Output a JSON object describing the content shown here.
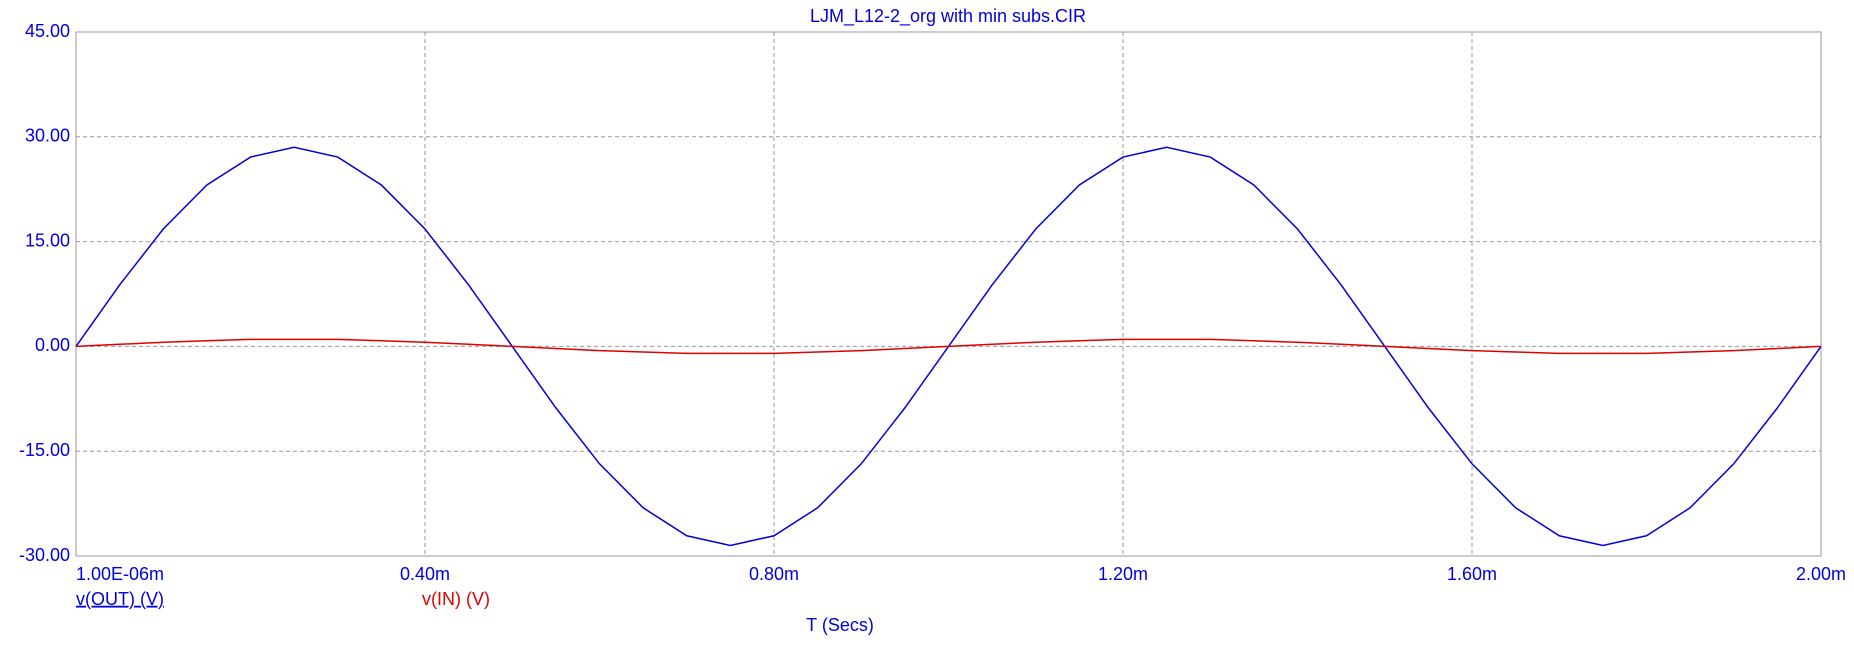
{
  "chart_data": {
    "type": "line",
    "title": "LJM_L12-2_org with min subs.CIR",
    "x_label": "T (Secs)",
    "x": [
      1e-06,
      0.05,
      0.1,
      0.15,
      0.2,
      0.25,
      0.3,
      0.35,
      0.4,
      0.45,
      0.5,
      0.55,
      0.6,
      0.65,
      0.7,
      0.75,
      0.8,
      0.85,
      0.9,
      0.95,
      1.0,
      1.05,
      1.1,
      1.15,
      1.2,
      1.25,
      1.3,
      1.35,
      1.4,
      1.45,
      1.5,
      1.55,
      1.6,
      1.65,
      1.7,
      1.75,
      1.8,
      1.85,
      1.9,
      1.95,
      2.0
    ],
    "series": [
      {
        "name": "v(OUT) (V)",
        "color": "#0000e0",
        "values": [
          0,
          8.8,
          16.8,
          23.1,
          27.1,
          28.5,
          27.1,
          23.1,
          16.8,
          8.8,
          0,
          -8.8,
          -16.8,
          -23.1,
          -27.1,
          -28.5,
          -27.1,
          -23.1,
          -16.8,
          -8.8,
          0,
          8.8,
          16.8,
          23.1,
          27.1,
          28.5,
          27.1,
          23.1,
          16.8,
          8.8,
          0,
          -8.8,
          -16.8,
          -23.1,
          -27.1,
          -28.5,
          -27.1,
          -23.1,
          -16.8,
          -8.8,
          0
        ]
      },
      {
        "name": "v(IN) (V)",
        "color": "#e00000",
        "values": [
          0,
          0.3,
          0.6,
          0.8,
          1.0,
          1.0,
          1.0,
          0.8,
          0.6,
          0.3,
          0,
          -0.3,
          -0.6,
          -0.8,
          -1.0,
          -1.0,
          -1.0,
          -0.8,
          -0.6,
          -0.3,
          0,
          0.3,
          0.6,
          0.8,
          1.0,
          1.0,
          1.0,
          0.8,
          0.6,
          0.3,
          0,
          -0.3,
          -0.6,
          -0.8,
          -1.0,
          -1.0,
          -1.0,
          -0.8,
          -0.6,
          -0.3,
          0
        ]
      }
    ],
    "xlim": [
      1e-06,
      2.0
    ],
    "xticks": [
      {
        "value": 1e-06,
        "label": "1.00E-06m"
      },
      {
        "value": 0.4,
        "label": "0.40m"
      },
      {
        "value": 0.8,
        "label": "0.80m"
      },
      {
        "value": 1.2,
        "label": "1.20m"
      },
      {
        "value": 1.6,
        "label": "1.60m"
      },
      {
        "value": 2.0,
        "label": "2.00m"
      }
    ],
    "ylim": [
      -30,
      45
    ],
    "yticks": [
      {
        "value": -30,
        "label": "-30.00"
      },
      {
        "value": -15,
        "label": "-15.00"
      },
      {
        "value": 0,
        "label": "0.00"
      },
      {
        "value": 15,
        "label": "15.00"
      },
      {
        "value": 30,
        "label": "30.00"
      },
      {
        "value": 45,
        "label": "45.00"
      }
    ],
    "grid": true
  }
}
